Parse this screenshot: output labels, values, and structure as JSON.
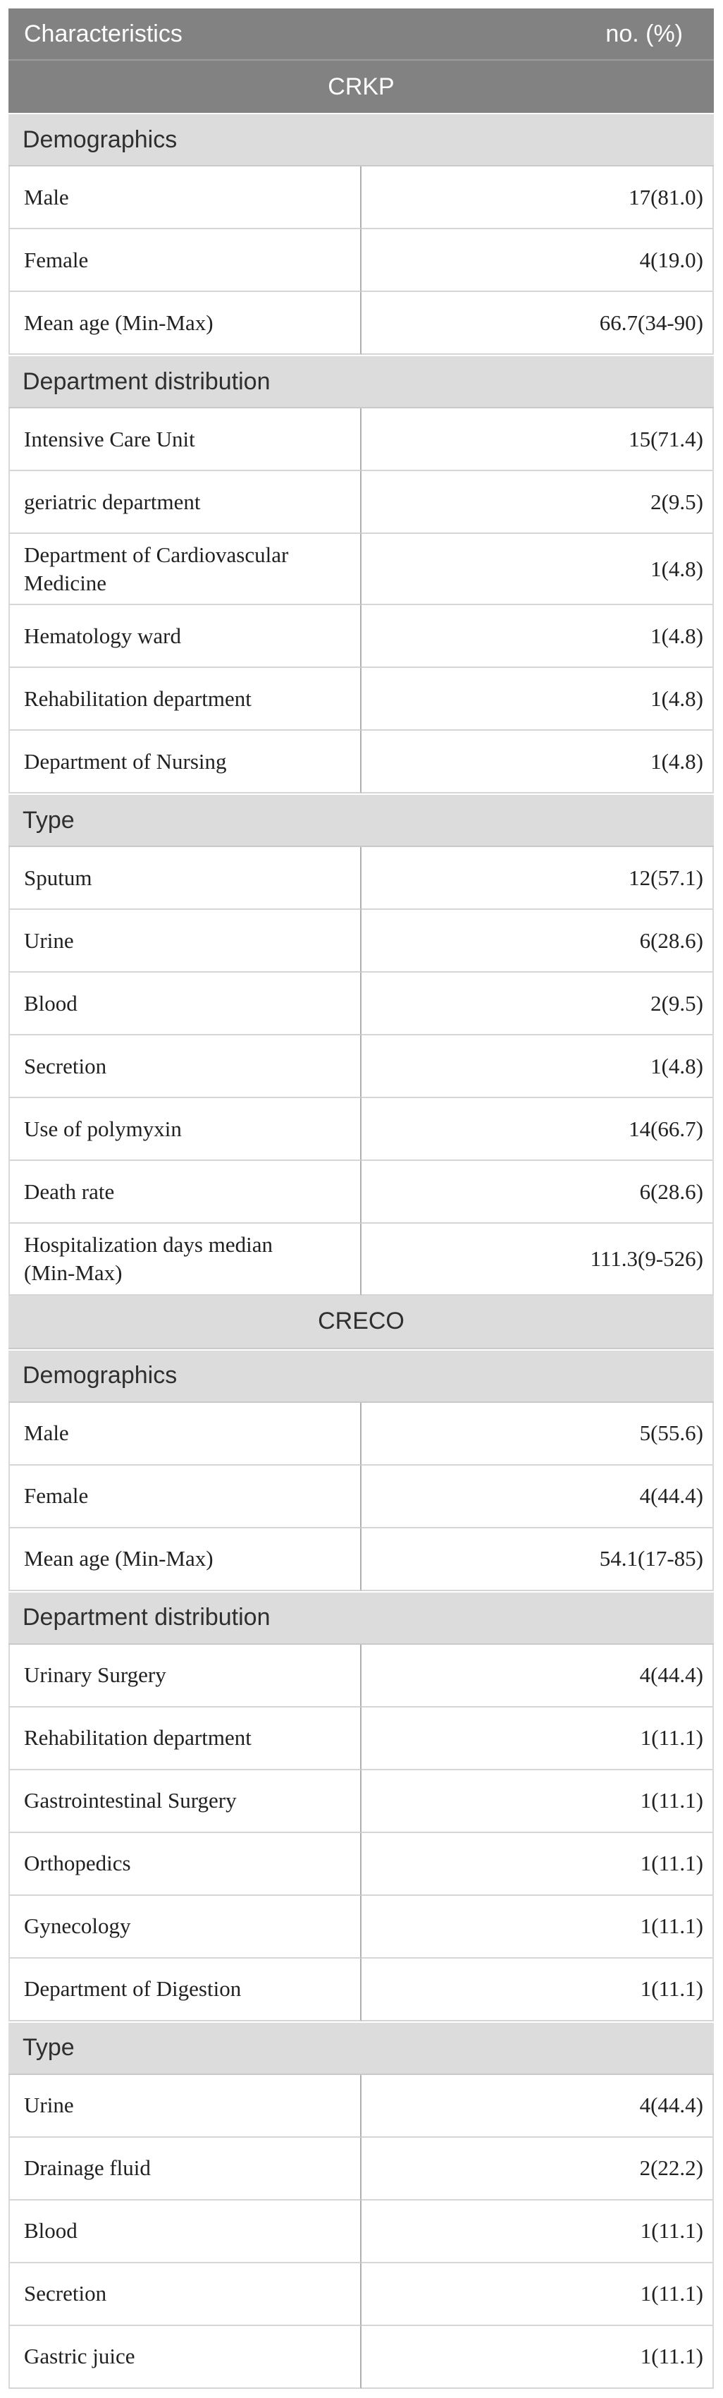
{
  "theme": {
    "dark-bg": "#828282",
    "dark-text": "#ffffff",
    "band-bg": "#dcdcdc",
    "band-text": "#2f2f2f",
    "data-text": "#212121",
    "line-soft": "#d6d6d6",
    "line-band": "#c9c9c9",
    "line-outer": "#d8d8d8",
    "line-divider": "#b0b0b0",
    "line-head": "#9c9c9c",
    "page-bg": "#ffffff"
  },
  "table": {
    "header": {
      "col1": "Characteristics",
      "col2": "no. (%)"
    },
    "rows": [
      {
        "kind": "group",
        "variant": "dark",
        "label": "CRKP"
      },
      {
        "kind": "section",
        "label": "Demographics"
      },
      {
        "kind": "data",
        "label": "Male",
        "value": "17(81.0)"
      },
      {
        "kind": "data",
        "label": "Female",
        "value": "4(19.0)"
      },
      {
        "kind": "data",
        "label": "Mean age (Min-Max)",
        "value": "66.7(34-90)"
      },
      {
        "kind": "section",
        "label": "Department distribution"
      },
      {
        "kind": "data",
        "label": "Intensive Care Unit",
        "value": "15(71.4)"
      },
      {
        "kind": "data",
        "label": "geriatric department",
        "value": "2(9.5)"
      },
      {
        "kind": "data",
        "label": "Department of Cardiovascular Medicine",
        "value": "1(4.8)"
      },
      {
        "kind": "data",
        "label": "Hematology ward",
        "value": "1(4.8)"
      },
      {
        "kind": "data",
        "label": "Rehabilitation department",
        "value": "1(4.8)"
      },
      {
        "kind": "data",
        "label": "Department of Nursing",
        "value": "1(4.8)"
      },
      {
        "kind": "section",
        "label": "Type"
      },
      {
        "kind": "data",
        "label": "Sputum",
        "value": "12(57.1)"
      },
      {
        "kind": "data",
        "label": "Urine",
        "value": "6(28.6)"
      },
      {
        "kind": "data",
        "label": "Blood",
        "value": "2(9.5)"
      },
      {
        "kind": "data",
        "label": "Secretion",
        "value": "1(4.8)"
      },
      {
        "kind": "data",
        "label": "Use of polymyxin",
        "value": "14(66.7)"
      },
      {
        "kind": "data",
        "label": "Death rate",
        "value": "6(28.6)"
      },
      {
        "kind": "data",
        "label": "Hospitalization days median (Min-Max)",
        "value": "111.3(9-526)"
      },
      {
        "kind": "group",
        "variant": "light",
        "label": "CRECO"
      },
      {
        "kind": "section",
        "label": "Demographics"
      },
      {
        "kind": "data",
        "label": "Male",
        "value": "5(55.6)"
      },
      {
        "kind": "data",
        "label": "Female",
        "value": "4(44.4)"
      },
      {
        "kind": "data",
        "label": "Mean age (Min-Max)",
        "value": "54.1(17-85)"
      },
      {
        "kind": "section",
        "label": "Department distribution"
      },
      {
        "kind": "data",
        "label": "Urinary Surgery",
        "value": "4(44.4)"
      },
      {
        "kind": "data",
        "label": "Rehabilitation department",
        "value": "1(11.1)"
      },
      {
        "kind": "data",
        "label": "Gastrointestinal Surgery",
        "value": "1(11.1)"
      },
      {
        "kind": "data",
        "label": "Orthopedics",
        "value": "1(11.1)"
      },
      {
        "kind": "data",
        "label": "Gynecology",
        "value": "1(11.1)"
      },
      {
        "kind": "data",
        "label": "Department of Digestion",
        "value": "1(11.1)"
      },
      {
        "kind": "section",
        "label": "Type"
      },
      {
        "kind": "data",
        "label": "Urine",
        "value": "4(44.4)"
      },
      {
        "kind": "data",
        "label": "Drainage fluid",
        "value": "2(22.2)"
      },
      {
        "kind": "data",
        "label": "Blood",
        "value": "1(11.1)"
      },
      {
        "kind": "data",
        "label": "Secretion",
        "value": "1(11.1)"
      },
      {
        "kind": "data",
        "label": "Gastric juice",
        "value": "1(11.1)"
      }
    ]
  }
}
